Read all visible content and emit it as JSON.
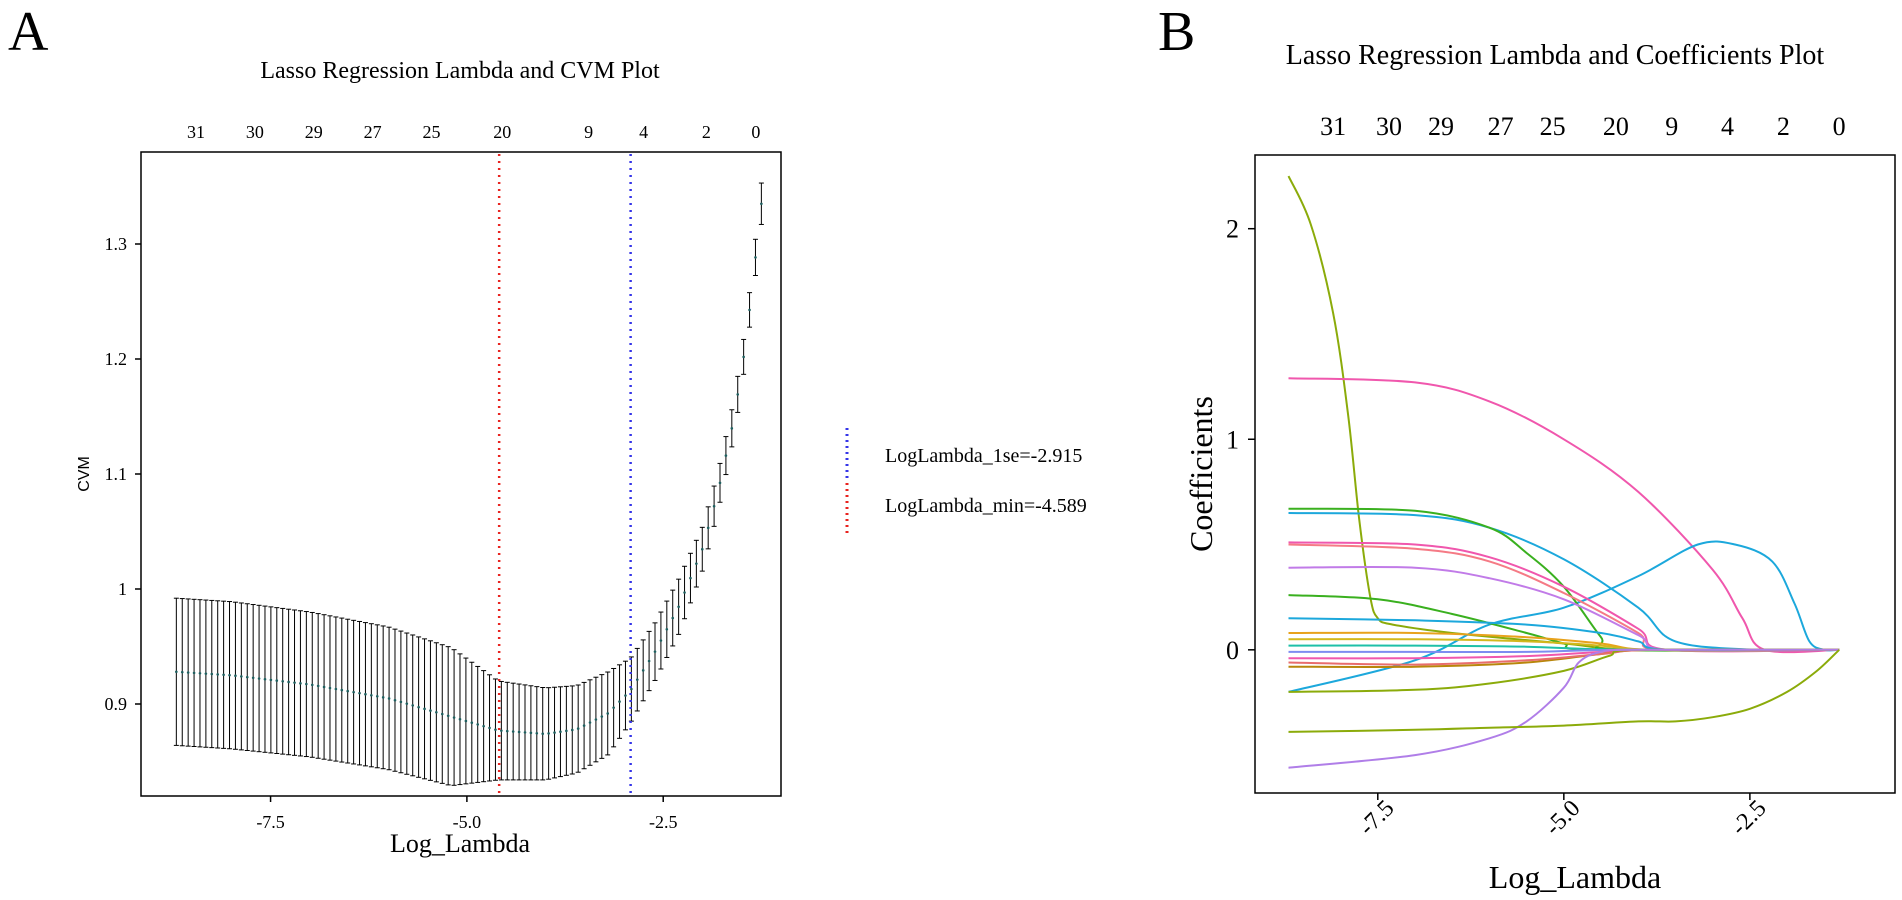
{
  "panel_labels": {
    "a": "A",
    "b": "B"
  },
  "chart_data": [
    {
      "type": "line",
      "subtype": "errorbar",
      "title": "Lasso Regression Lambda and CVM Plot",
      "xlabel": "Log_Lambda",
      "ylabel": "CVM",
      "xlim": [
        -9.15,
        -1.0
      ],
      "ylim": [
        0.82,
        1.38
      ],
      "xticks": [
        -7.5,
        -5.0,
        -2.5
      ],
      "xtick_labels": [
        "-7.5",
        "-5.0",
        "-2.5"
      ],
      "yticks": [
        0.9,
        1.0,
        1.1,
        1.2,
        1.3
      ],
      "ytick_labels": [
        "0.9",
        "1",
        "1.1",
        "1.2",
        "1.3"
      ],
      "top_axis": {
        "positions": [
          -8.45,
          -7.7,
          -6.95,
          -6.2,
          -5.45,
          -4.55,
          -3.45,
          -2.75,
          -1.95,
          -1.32
        ],
        "labels": [
          "31",
          "30",
          "29",
          "27",
          "25",
          "20",
          "9",
          "4",
          "2",
          "0"
        ]
      },
      "vlines": [
        {
          "name": "LogLambda_min",
          "x": -4.589,
          "color": "#e8231f"
        },
        {
          "name": "LogLambda_1se",
          "x": -2.915,
          "color": "#3535e8"
        }
      ],
      "legend": {
        "placement": "right",
        "entries": [
          {
            "label": "LogLambda_1se=-2.915",
            "color": "#3535e8"
          },
          {
            "label": "LogLambda_min=-4.589",
            "color": "#e8231f"
          }
        ]
      },
      "cv_knots": {
        "x": [
          -8.7,
          -8.0,
          -7.0,
          -6.0,
          -5.2,
          -4.6,
          -4.0,
          -3.6,
          -3.2,
          -2.915,
          -2.6,
          -2.3,
          -2.0,
          -1.8,
          -1.6,
          -1.45,
          -1.35,
          -1.25
        ],
        "mean": [
          0.928,
          0.925,
          0.917,
          0.905,
          0.889,
          0.877,
          0.874,
          0.878,
          0.892,
          0.912,
          0.946,
          0.985,
          1.035,
          1.085,
          1.148,
          1.213,
          1.273,
          1.335
        ],
        "half_width": [
          0.064,
          0.064,
          0.063,
          0.062,
          0.06,
          0.043,
          0.04,
          0.038,
          0.036,
          0.028,
          0.025,
          0.024,
          0.019,
          0.017,
          0.016,
          0.015,
          0.015,
          0.018
        ]
      },
      "n_points": 100,
      "series_color": "#1f5f5f",
      "errorbar_color": "#000000"
    },
    {
      "type": "line",
      "title": "Lasso Regression Lambda and Coefficients Plot",
      "xlabel": "Log_Lambda",
      "ylabel": "Coefficients",
      "xlim": [
        -9.15,
        -0.55
      ],
      "ylim": [
        -0.68,
        2.35
      ],
      "xticks": [
        -7.5,
        -5.0,
        -2.5
      ],
      "xtick_labels": [
        "-7.5",
        "-5.0",
        "-2.5"
      ],
      "yticks": [
        0,
        1,
        2
      ],
      "ytick_labels": [
        "0",
        "1",
        "2"
      ],
      "top_axis": {
        "positions": [
          -8.1,
          -7.35,
          -6.65,
          -5.85,
          -5.15,
          -4.3,
          -3.55,
          -2.8,
          -2.05,
          -1.3
        ],
        "labels": [
          "31",
          "30",
          "29",
          "27",
          "25",
          "20",
          "9",
          "4",
          "2",
          "0"
        ]
      },
      "series": [
        {
          "name": "coef_1",
          "color": "#8bab0a",
          "x": [
            -8.7,
            -8.4,
            -8.1,
            -7.9,
            -7.75,
            -7.6,
            -7.5,
            -7.3,
            -6.5,
            -5.0,
            -4.0,
            -1.3
          ],
          "y": [
            2.25,
            2.02,
            1.6,
            1.12,
            0.62,
            0.25,
            0.15,
            0.12,
            0.08,
            0.03,
            0.0,
            0.0
          ]
        },
        {
          "name": "coef_2",
          "color": "#f057ad",
          "x": [
            -8.7,
            -7.0,
            -6.0,
            -5.0,
            -4.0,
            -3.0,
            -2.6,
            -2.3,
            -1.3
          ],
          "y": [
            1.29,
            1.27,
            1.18,
            1.0,
            0.75,
            0.38,
            0.15,
            0.0,
            0.0
          ]
        },
        {
          "name": "coef_3",
          "color": "#1ca8dc",
          "x": [
            -8.7,
            -7.0,
            -6.0,
            -5.0,
            -4.0,
            -3.2,
            -2.7,
            -2.2,
            -1.9,
            -1.7,
            -1.5,
            -1.3
          ],
          "y": [
            -0.2,
            -0.05,
            0.12,
            0.2,
            0.35,
            0.5,
            0.5,
            0.42,
            0.22,
            0.04,
            0.0,
            0.0
          ]
        },
        {
          "name": "coef_4",
          "color": "#1ca8dc",
          "x": [
            -8.7,
            -7.0,
            -6.0,
            -5.0,
            -4.0,
            -3.5,
            -2.4,
            -1.3
          ],
          "y": [
            0.65,
            0.64,
            0.58,
            0.43,
            0.2,
            0.04,
            0.0,
            0.0
          ]
        },
        {
          "name": "coef_5",
          "color": "#3ab01f",
          "x": [
            -8.7,
            -7.0,
            -6.0,
            -5.5,
            -5.0,
            -4.5,
            -4.3,
            -1.3
          ],
          "y": [
            0.67,
            0.66,
            0.58,
            0.46,
            0.3,
            0.06,
            0.0,
            0.0
          ]
        },
        {
          "name": "coef_6",
          "color": "#f057ad",
          "x": [
            -8.7,
            -7.0,
            -6.0,
            -5.0,
            -4.0,
            -3.6,
            -1.3
          ],
          "y": [
            0.51,
            0.5,
            0.44,
            0.3,
            0.1,
            0.0,
            0.0
          ]
        },
        {
          "name": "coef_7",
          "color": "#f57a85",
          "x": [
            -8.7,
            -7.0,
            -6.0,
            -5.0,
            -4.0,
            -3.7,
            -1.3
          ],
          "y": [
            0.5,
            0.48,
            0.42,
            0.27,
            0.08,
            0.0,
            0.0
          ]
        },
        {
          "name": "coef_8",
          "color": "#c17be8",
          "x": [
            -8.7,
            -7.0,
            -6.0,
            -5.0,
            -4.0,
            -3.6,
            -1.3
          ],
          "y": [
            0.39,
            0.39,
            0.34,
            0.24,
            0.07,
            0.0,
            0.0
          ]
        },
        {
          "name": "coef_9",
          "color": "#3ab01f",
          "x": [
            -8.7,
            -7.5,
            -6.5,
            -5.5,
            -5.0,
            -4.6,
            -1.3
          ],
          "y": [
            0.26,
            0.24,
            0.17,
            0.08,
            0.03,
            0.0,
            0.0
          ]
        },
        {
          "name": "coef_10",
          "color": "#1ca8dc",
          "x": [
            -8.7,
            -7.0,
            -5.5,
            -4.5,
            -4.0,
            -3.6,
            -1.3
          ],
          "y": [
            0.15,
            0.14,
            0.12,
            0.08,
            0.04,
            0.0,
            0.0
          ]
        },
        {
          "name": "coef_11",
          "color": "#e8a21c",
          "x": [
            -8.7,
            -7.0,
            -5.5,
            -4.5,
            -3.8,
            -1.3
          ],
          "y": [
            0.08,
            0.08,
            0.06,
            0.03,
            0.0,
            0.0
          ]
        },
        {
          "name": "coef_12",
          "color": "#d4b81c",
          "x": [
            -8.7,
            -7.0,
            -5.5,
            -4.5,
            -3.8,
            -1.3
          ],
          "y": [
            0.05,
            0.05,
            0.04,
            0.02,
            0.0,
            0.0
          ]
        },
        {
          "name": "coef_13",
          "color": "#1ec0a8",
          "x": [
            -8.7,
            -7.0,
            -5.5,
            -4.2,
            -1.3
          ],
          "y": [
            0.02,
            0.02,
            0.015,
            0.0,
            0.0
          ]
        },
        {
          "name": "coef_14",
          "color": "#7d8cf0",
          "x": [
            -8.7,
            -7.0,
            -5.5,
            -4.2,
            -1.3
          ],
          "y": [
            -0.01,
            -0.01,
            -0.01,
            0.0,
            0.0
          ]
        },
        {
          "name": "coef_15",
          "color": "#f057ad",
          "x": [
            -8.7,
            -7.0,
            -5.5,
            -4.5,
            -3.9,
            -1.3
          ],
          "y": [
            -0.04,
            -0.04,
            -0.03,
            -0.01,
            0.0,
            0.0
          ]
        },
        {
          "name": "coef_16",
          "color": "#b8860b",
          "x": [
            -8.7,
            -7.0,
            -5.5,
            -4.5,
            -3.8,
            -1.3
          ],
          "y": [
            -0.08,
            -0.08,
            -0.06,
            -0.02,
            0.0,
            0.0
          ]
        },
        {
          "name": "coef_17",
          "color": "#e86d6d",
          "x": [
            -8.7,
            -7.0,
            -5.5,
            -4.5,
            -3.8,
            -1.3
          ],
          "y": [
            -0.06,
            -0.07,
            -0.05,
            -0.02,
            0.0,
            0.0
          ]
        },
        {
          "name": "coef_18",
          "color": "#8bab0a",
          "x": [
            -8.7,
            -7.0,
            -6.0,
            -5.0,
            -4.4,
            -4.0,
            -1.3
          ],
          "y": [
            -0.2,
            -0.19,
            -0.16,
            -0.1,
            -0.03,
            0.0,
            0.0
          ]
        },
        {
          "name": "coef_19",
          "color": "#b07ee8",
          "x": [
            -8.7,
            -7.0,
            -6.0,
            -5.5,
            -5.0,
            -4.8,
            -4.5,
            -4.0,
            -1.3
          ],
          "y": [
            -0.56,
            -0.5,
            -0.42,
            -0.34,
            -0.18,
            -0.06,
            -0.01,
            0.0,
            0.0
          ]
        },
        {
          "name": "coef_20",
          "color": "#8bab0a",
          "x": [
            -8.7,
            -7.0,
            -6.0,
            -5.0,
            -4.0,
            -3.5,
            -3.0,
            -2.5,
            -2.0,
            -1.6,
            -1.3
          ],
          "y": [
            -0.39,
            -0.38,
            -0.37,
            -0.36,
            -0.34,
            -0.34,
            -0.32,
            -0.28,
            -0.2,
            -0.1,
            0.0
          ]
        }
      ]
    }
  ]
}
